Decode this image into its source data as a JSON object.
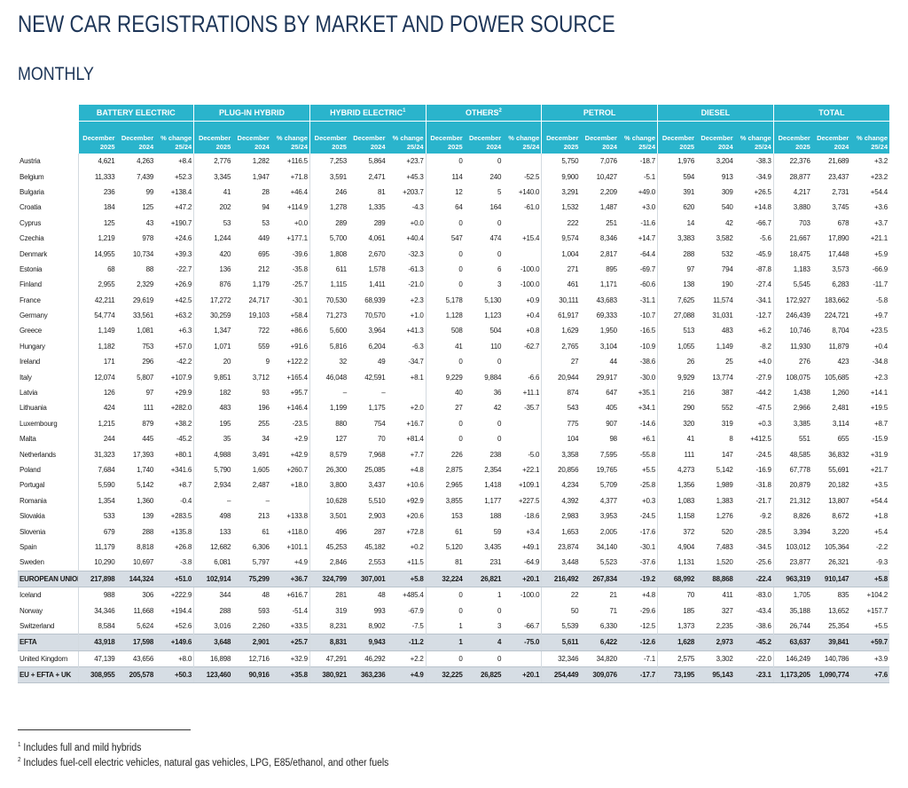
{
  "title": "NEW CAR REGISTRATIONS BY MARKET AND POWER SOURCE",
  "subtitle": "MONTHLY",
  "groups": [
    {
      "name": "BATTERY ELECTRIC"
    },
    {
      "name": "PLUG-IN HYBRID"
    },
    {
      "name": "HYBRID ELECTRIC",
      "note": "1"
    },
    {
      "name": "OTHERS",
      "note": "2"
    },
    {
      "name": "PETROL"
    },
    {
      "name": "DIESEL"
    },
    {
      "name": "TOTAL"
    }
  ],
  "columns": [
    [
      "December",
      "2025"
    ],
    [
      "December",
      "2024"
    ],
    [
      "% change",
      "25/24"
    ]
  ],
  "rows": [
    {
      "label": "Austria",
      "cells": [
        "4,621",
        "4,263",
        "+8.4",
        "2,776",
        "1,282",
        "+116.5",
        "7,253",
        "5,864",
        "+23.7",
        "0",
        "0",
        null,
        "5,750",
        "7,076",
        "-18.7",
        "1,976",
        "3,204",
        "-38.3",
        "22,376",
        "21,689",
        "+3.2"
      ]
    },
    {
      "label": "Belgium",
      "cells": [
        "11,333",
        "7,439",
        "+52.3",
        "3,345",
        "1,947",
        "+71.8",
        "3,591",
        "2,471",
        "+45.3",
        "114",
        "240",
        "-52.5",
        "9,900",
        "10,427",
        "-5.1",
        "594",
        "913",
        "-34.9",
        "28,877",
        "23,437",
        "+23.2"
      ]
    },
    {
      "label": "Bulgaria",
      "cells": [
        "236",
        "99",
        "+138.4",
        "41",
        "28",
        "+46.4",
        "246",
        "81",
        "+203.7",
        "12",
        "5",
        "+140.0",
        "3,291",
        "2,209",
        "+49.0",
        "391",
        "309",
        "+26.5",
        "4,217",
        "2,731",
        "+54.4"
      ]
    },
    {
      "label": "Croatia",
      "cells": [
        "184",
        "125",
        "+47.2",
        "202",
        "94",
        "+114.9",
        "1,278",
        "1,335",
        "-4.3",
        "64",
        "164",
        "-61.0",
        "1,532",
        "1,487",
        "+3.0",
        "620",
        "540",
        "+14.8",
        "3,880",
        "3,745",
        "+3.6"
      ]
    },
    {
      "label": "Cyprus",
      "cells": [
        "125",
        "43",
        "+190.7",
        "53",
        "53",
        "+0.0",
        "289",
        "289",
        "+0.0",
        "0",
        "0",
        null,
        "222",
        "251",
        "-11.6",
        "14",
        "42",
        "-66.7",
        "703",
        "678",
        "+3.7"
      ]
    },
    {
      "label": "Czechia",
      "cells": [
        "1,219",
        "978",
        "+24.6",
        "1,244",
        "449",
        "+177.1",
        "5,700",
        "4,061",
        "+40.4",
        "547",
        "474",
        "+15.4",
        "9,574",
        "8,346",
        "+14.7",
        "3,383",
        "3,582",
        "-5.6",
        "21,667",
        "17,890",
        "+21.1"
      ]
    },
    {
      "label": "Denmark",
      "cells": [
        "14,955",
        "10,734",
        "+39.3",
        "420",
        "695",
        "-39.6",
        "1,808",
        "2,670",
        "-32.3",
        "0",
        "0",
        null,
        "1,004",
        "2,817",
        "-64.4",
        "288",
        "532",
        "-45.9",
        "18,475",
        "17,448",
        "+5.9"
      ]
    },
    {
      "label": "Estonia",
      "cells": [
        "68",
        "88",
        "-22.7",
        "136",
        "212",
        "-35.8",
        "611",
        "1,578",
        "-61.3",
        "0",
        "6",
        "-100.0",
        "271",
        "895",
        "-69.7",
        "97",
        "794",
        "-87.8",
        "1,183",
        "3,573",
        "-66.9"
      ]
    },
    {
      "label": "Finland",
      "cells": [
        "2,955",
        "2,329",
        "+26.9",
        "876",
        "1,179",
        "-25.7",
        "1,115",
        "1,411",
        "-21.0",
        "0",
        "3",
        "-100.0",
        "461",
        "1,171",
        "-60.6",
        "138",
        "190",
        "-27.4",
        "5,545",
        "6,283",
        "-11.7"
      ]
    },
    {
      "label": "France",
      "cells": [
        "42,211",
        "29,619",
        "+42.5",
        "17,272",
        "24,717",
        "-30.1",
        "70,530",
        "68,939",
        "+2.3",
        "5,178",
        "5,130",
        "+0.9",
        "30,111",
        "43,683",
        "-31.1",
        "7,625",
        "11,574",
        "-34.1",
        "172,927",
        "183,662",
        "-5.8"
      ]
    },
    {
      "label": "Germany",
      "cells": [
        "54,774",
        "33,561",
        "+63.2",
        "30,259",
        "19,103",
        "+58.4",
        "71,273",
        "70,570",
        "+1.0",
        "1,128",
        "1,123",
        "+0.4",
        "61,917",
        "69,333",
        "-10.7",
        "27,088",
        "31,031",
        "-12.7",
        "246,439",
        "224,721",
        "+9.7"
      ]
    },
    {
      "label": "Greece",
      "cells": [
        "1,149",
        "1,081",
        "+6.3",
        "1,347",
        "722",
        "+86.6",
        "5,600",
        "3,964",
        "+41.3",
        "508",
        "504",
        "+0.8",
        "1,629",
        "1,950",
        "-16.5",
        "513",
        "483",
        "+6.2",
        "10,746",
        "8,704",
        "+23.5"
      ]
    },
    {
      "label": "Hungary",
      "cells": [
        "1,182",
        "753",
        "+57.0",
        "1,071",
        "559",
        "+91.6",
        "5,816",
        "6,204",
        "-6.3",
        "41",
        "110",
        "-62.7",
        "2,765",
        "3,104",
        "-10.9",
        "1,055",
        "1,149",
        "-8.2",
        "11,930",
        "11,879",
        "+0.4"
      ]
    },
    {
      "label": "Ireland",
      "cells": [
        "171",
        "296",
        "-42.2",
        "20",
        "9",
        "+122.2",
        "32",
        "49",
        "-34.7",
        "0",
        "0",
        null,
        "27",
        "44",
        "-38.6",
        "26",
        "25",
        "+4.0",
        "276",
        "423",
        "-34.8"
      ]
    },
    {
      "label": "Italy",
      "cells": [
        "12,074",
        "5,807",
        "+107.9",
        "9,851",
        "3,712",
        "+165.4",
        "46,048",
        "42,591",
        "+8.1",
        "9,229",
        "9,884",
        "-6.6",
        "20,944",
        "29,917",
        "-30.0",
        "9,929",
        "13,774",
        "-27.9",
        "108,075",
        "105,685",
        "+2.3"
      ]
    },
    {
      "label": "Latvia",
      "cells": [
        "126",
        "97",
        "+29.9",
        "182",
        "93",
        "+95.7",
        "–",
        "–",
        null,
        "40",
        "36",
        "+11.1",
        "874",
        "647",
        "+35.1",
        "216",
        "387",
        "-44.2",
        "1,438",
        "1,260",
        "+14.1"
      ]
    },
    {
      "label": "Lithuania",
      "cells": [
        "424",
        "111",
        "+282.0",
        "483",
        "196",
        "+146.4",
        "1,199",
        "1,175",
        "+2.0",
        "27",
        "42",
        "-35.7",
        "543",
        "405",
        "+34.1",
        "290",
        "552",
        "-47.5",
        "2,966",
        "2,481",
        "+19.5"
      ]
    },
    {
      "label": "Luxembourg",
      "cells": [
        "1,215",
        "879",
        "+38.2",
        "195",
        "255",
        "-23.5",
        "880",
        "754",
        "+16.7",
        "0",
        "0",
        null,
        "775",
        "907",
        "-14.6",
        "320",
        "319",
        "+0.3",
        "3,385",
        "3,114",
        "+8.7"
      ]
    },
    {
      "label": "Malta",
      "cells": [
        "244",
        "445",
        "-45.2",
        "35",
        "34",
        "+2.9",
        "127",
        "70",
        "+81.4",
        "0",
        "0",
        null,
        "104",
        "98",
        "+6.1",
        "41",
        "8",
        "+412.5",
        "551",
        "655",
        "-15.9"
      ]
    },
    {
      "label": "Netherlands",
      "cells": [
        "31,323",
        "17,393",
        "+80.1",
        "4,988",
        "3,491",
        "+42.9",
        "8,579",
        "7,968",
        "+7.7",
        "226",
        "238",
        "-5.0",
        "3,358",
        "7,595",
        "-55.8",
        "111",
        "147",
        "-24.5",
        "48,585",
        "36,832",
        "+31.9"
      ]
    },
    {
      "label": "Poland",
      "cells": [
        "7,684",
        "1,740",
        "+341.6",
        "5,790",
        "1,605",
        "+260.7",
        "26,300",
        "25,085",
        "+4.8",
        "2,875",
        "2,354",
        "+22.1",
        "20,856",
        "19,765",
        "+5.5",
        "4,273",
        "5,142",
        "-16.9",
        "67,778",
        "55,691",
        "+21.7"
      ]
    },
    {
      "label": "Portugal",
      "cells": [
        "5,590",
        "5,142",
        "+8.7",
        "2,934",
        "2,487",
        "+18.0",
        "3,800",
        "3,437",
        "+10.6",
        "2,965",
        "1,418",
        "+109.1",
        "4,234",
        "5,709",
        "-25.8",
        "1,356",
        "1,989",
        "-31.8",
        "20,879",
        "20,182",
        "+3.5"
      ]
    },
    {
      "label": "Romania",
      "cells": [
        "1,354",
        "1,360",
        "-0.4",
        "–",
        "–",
        null,
        "10,628",
        "5,510",
        "+92.9",
        "3,855",
        "1,177",
        "+227.5",
        "4,392",
        "4,377",
        "+0.3",
        "1,083",
        "1,383",
        "-21.7",
        "21,312",
        "13,807",
        "+54.4"
      ]
    },
    {
      "label": "Slovakia",
      "cells": [
        "533",
        "139",
        "+283.5",
        "498",
        "213",
        "+133.8",
        "3,501",
        "2,903",
        "+20.6",
        "153",
        "188",
        "-18.6",
        "2,983",
        "3,953",
        "-24.5",
        "1,158",
        "1,276",
        "-9.2",
        "8,826",
        "8,672",
        "+1.8"
      ]
    },
    {
      "label": "Slovenia",
      "cells": [
        "679",
        "288",
        "+135.8",
        "133",
        "61",
        "+118.0",
        "496",
        "287",
        "+72.8",
        "61",
        "59",
        "+3.4",
        "1,653",
        "2,005",
        "-17.6",
        "372",
        "520",
        "-28.5",
        "3,394",
        "3,220",
        "+5.4"
      ]
    },
    {
      "label": "Spain",
      "cells": [
        "11,179",
        "8,818",
        "+26.8",
        "12,682",
        "6,306",
        "+101.1",
        "45,253",
        "45,182",
        "+0.2",
        "5,120",
        "3,435",
        "+49.1",
        "23,874",
        "34,140",
        "-30.1",
        "4,904",
        "7,483",
        "-34.5",
        "103,012",
        "105,364",
        "-2.2"
      ]
    },
    {
      "label": "Sweden",
      "cells": [
        "10,290",
        "10,697",
        "-3.8",
        "6,081",
        "5,797",
        "+4.9",
        "2,846",
        "2,553",
        "+11.5",
        "81",
        "231",
        "-64.9",
        "3,448",
        "5,523",
        "-37.6",
        "1,131",
        "1,520",
        "-25.6",
        "23,877",
        "26,321",
        "-9.3"
      ]
    },
    {
      "label": "EUROPEAN UNION",
      "summary": true,
      "cells": [
        "217,898",
        "144,324",
        "+51.0",
        "102,914",
        "75,299",
        "+36.7",
        "324,799",
        "307,001",
        "+5.8",
        "32,224",
        "26,821",
        "+20.1",
        "216,492",
        "267,834",
        "-19.2",
        "68,992",
        "88,868",
        "-22.4",
        "963,319",
        "910,147",
        "+5.8"
      ]
    },
    {
      "label": "Iceland",
      "cells": [
        "988",
        "306",
        "+222.9",
        "344",
        "48",
        "+616.7",
        "281",
        "48",
        "+485.4",
        "0",
        "1",
        "-100.0",
        "22",
        "21",
        "+4.8",
        "70",
        "411",
        "-83.0",
        "1,705",
        "835",
        "+104.2"
      ]
    },
    {
      "label": "Norway",
      "cells": [
        "34,346",
        "11,668",
        "+194.4",
        "288",
        "593",
        "-51.4",
        "319",
        "993",
        "-67.9",
        "0",
        "0",
        null,
        "50",
        "71",
        "-29.6",
        "185",
        "327",
        "-43.4",
        "35,188",
        "13,652",
        "+157.7"
      ]
    },
    {
      "label": "Switzerland",
      "cells": [
        "8,584",
        "5,624",
        "+52.6",
        "3,016",
        "2,260",
        "+33.5",
        "8,231",
        "8,902",
        "-7.5",
        "1",
        "3",
        "-66.7",
        "5,539",
        "6,330",
        "-12.5",
        "1,373",
        "2,235",
        "-38.6",
        "26,744",
        "25,354",
        "+5.5"
      ]
    },
    {
      "label": "EFTA",
      "summary": true,
      "cells": [
        "43,918",
        "17,598",
        "+149.6",
        "3,648",
        "2,901",
        "+25.7",
        "8,831",
        "9,943",
        "-11.2",
        "1",
        "4",
        "-75.0",
        "5,611",
        "6,422",
        "-12.6",
        "1,628",
        "2,973",
        "-45.2",
        "63,637",
        "39,841",
        "+59.7"
      ]
    },
    {
      "label": "United Kingdom",
      "cells": [
        "47,139",
        "43,656",
        "+8.0",
        "16,898",
        "12,716",
        "+32.9",
        "47,291",
        "46,292",
        "+2.2",
        "0",
        "0",
        null,
        "32,346",
        "34,820",
        "-7.1",
        "2,575",
        "3,302",
        "-22.0",
        "146,249",
        "140,786",
        "+3.9"
      ]
    },
    {
      "label": "EU + EFTA + UK",
      "summary": true,
      "cells": [
        "308,955",
        "205,578",
        "+50.3",
        "123,460",
        "90,916",
        "+35.8",
        "380,921",
        "363,236",
        "+4.9",
        "32,225",
        "26,825",
        "+20.1",
        "254,449",
        "309,076",
        "-17.7",
        "73,195",
        "95,143",
        "-23.1",
        "1,173,205",
        "1,090,774",
        "+7.6"
      ]
    }
  ],
  "footnotes": [
    {
      "mark": "1",
      "text": "Includes full and mild hybrids"
    },
    {
      "mark": "2",
      "text": "Includes fuel-cell electric vehicles, natural gas vehicles, LPG, E85/ethanol, and other fuels"
    }
  ]
}
